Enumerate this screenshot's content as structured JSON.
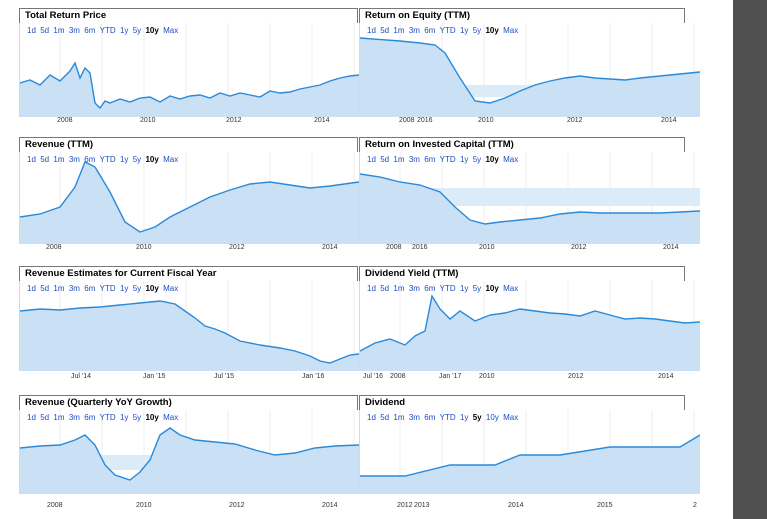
{
  "range_options": [
    "1d",
    "5d",
    "1m",
    "3m",
    "6m",
    "YTD",
    "1y",
    "5y",
    "10y",
    "Max"
  ],
  "panels": [
    {
      "title": "Total Return Price",
      "selected": "10y",
      "x_labels": [
        "2008",
        "2010",
        "2012",
        "2014"
      ]
    },
    {
      "title": "Return on Equity (TTM)",
      "selected": "10y",
      "x_labels": [
        "2008",
        "2016",
        "2010",
        "2012",
        "2014"
      ]
    },
    {
      "title": "Revenue (TTM)",
      "selected": "10y",
      "x_labels": [
        "2008",
        "2010",
        "2012",
        "2014"
      ]
    },
    {
      "title": "Return on Invested Capital (TTM)",
      "selected": "10y",
      "x_labels": [
        "2008",
        "2016",
        "2010",
        "2012",
        "2014"
      ]
    },
    {
      "title": "Revenue Estimates for Current Fiscal Year",
      "selected": "10y",
      "x_labels": [
        "Jul '14",
        "Jan '15",
        "Jul '15",
        "Jan '16"
      ]
    },
    {
      "title": "Dividend Yield (TTM)",
      "selected": "10y",
      "x_labels": [
        "Jul '16",
        "2008",
        "Jan '17",
        "2010",
        "2012",
        "2014"
      ]
    },
    {
      "title": "Revenue (Quarterly YoY Growth)",
      "selected": "10y",
      "x_labels": [
        "2008",
        "2010",
        "2012",
        "2014"
      ]
    },
    {
      "title": "Dividend",
      "selected": "5y",
      "x_labels": [
        "2012",
        "2013",
        "2014",
        "2015",
        "2"
      ]
    }
  ],
  "colors": {
    "line": "#2b8ad8",
    "fill": "#c9e0f5",
    "link": "#1d4ec3",
    "sidebar": "#505050"
  }
}
